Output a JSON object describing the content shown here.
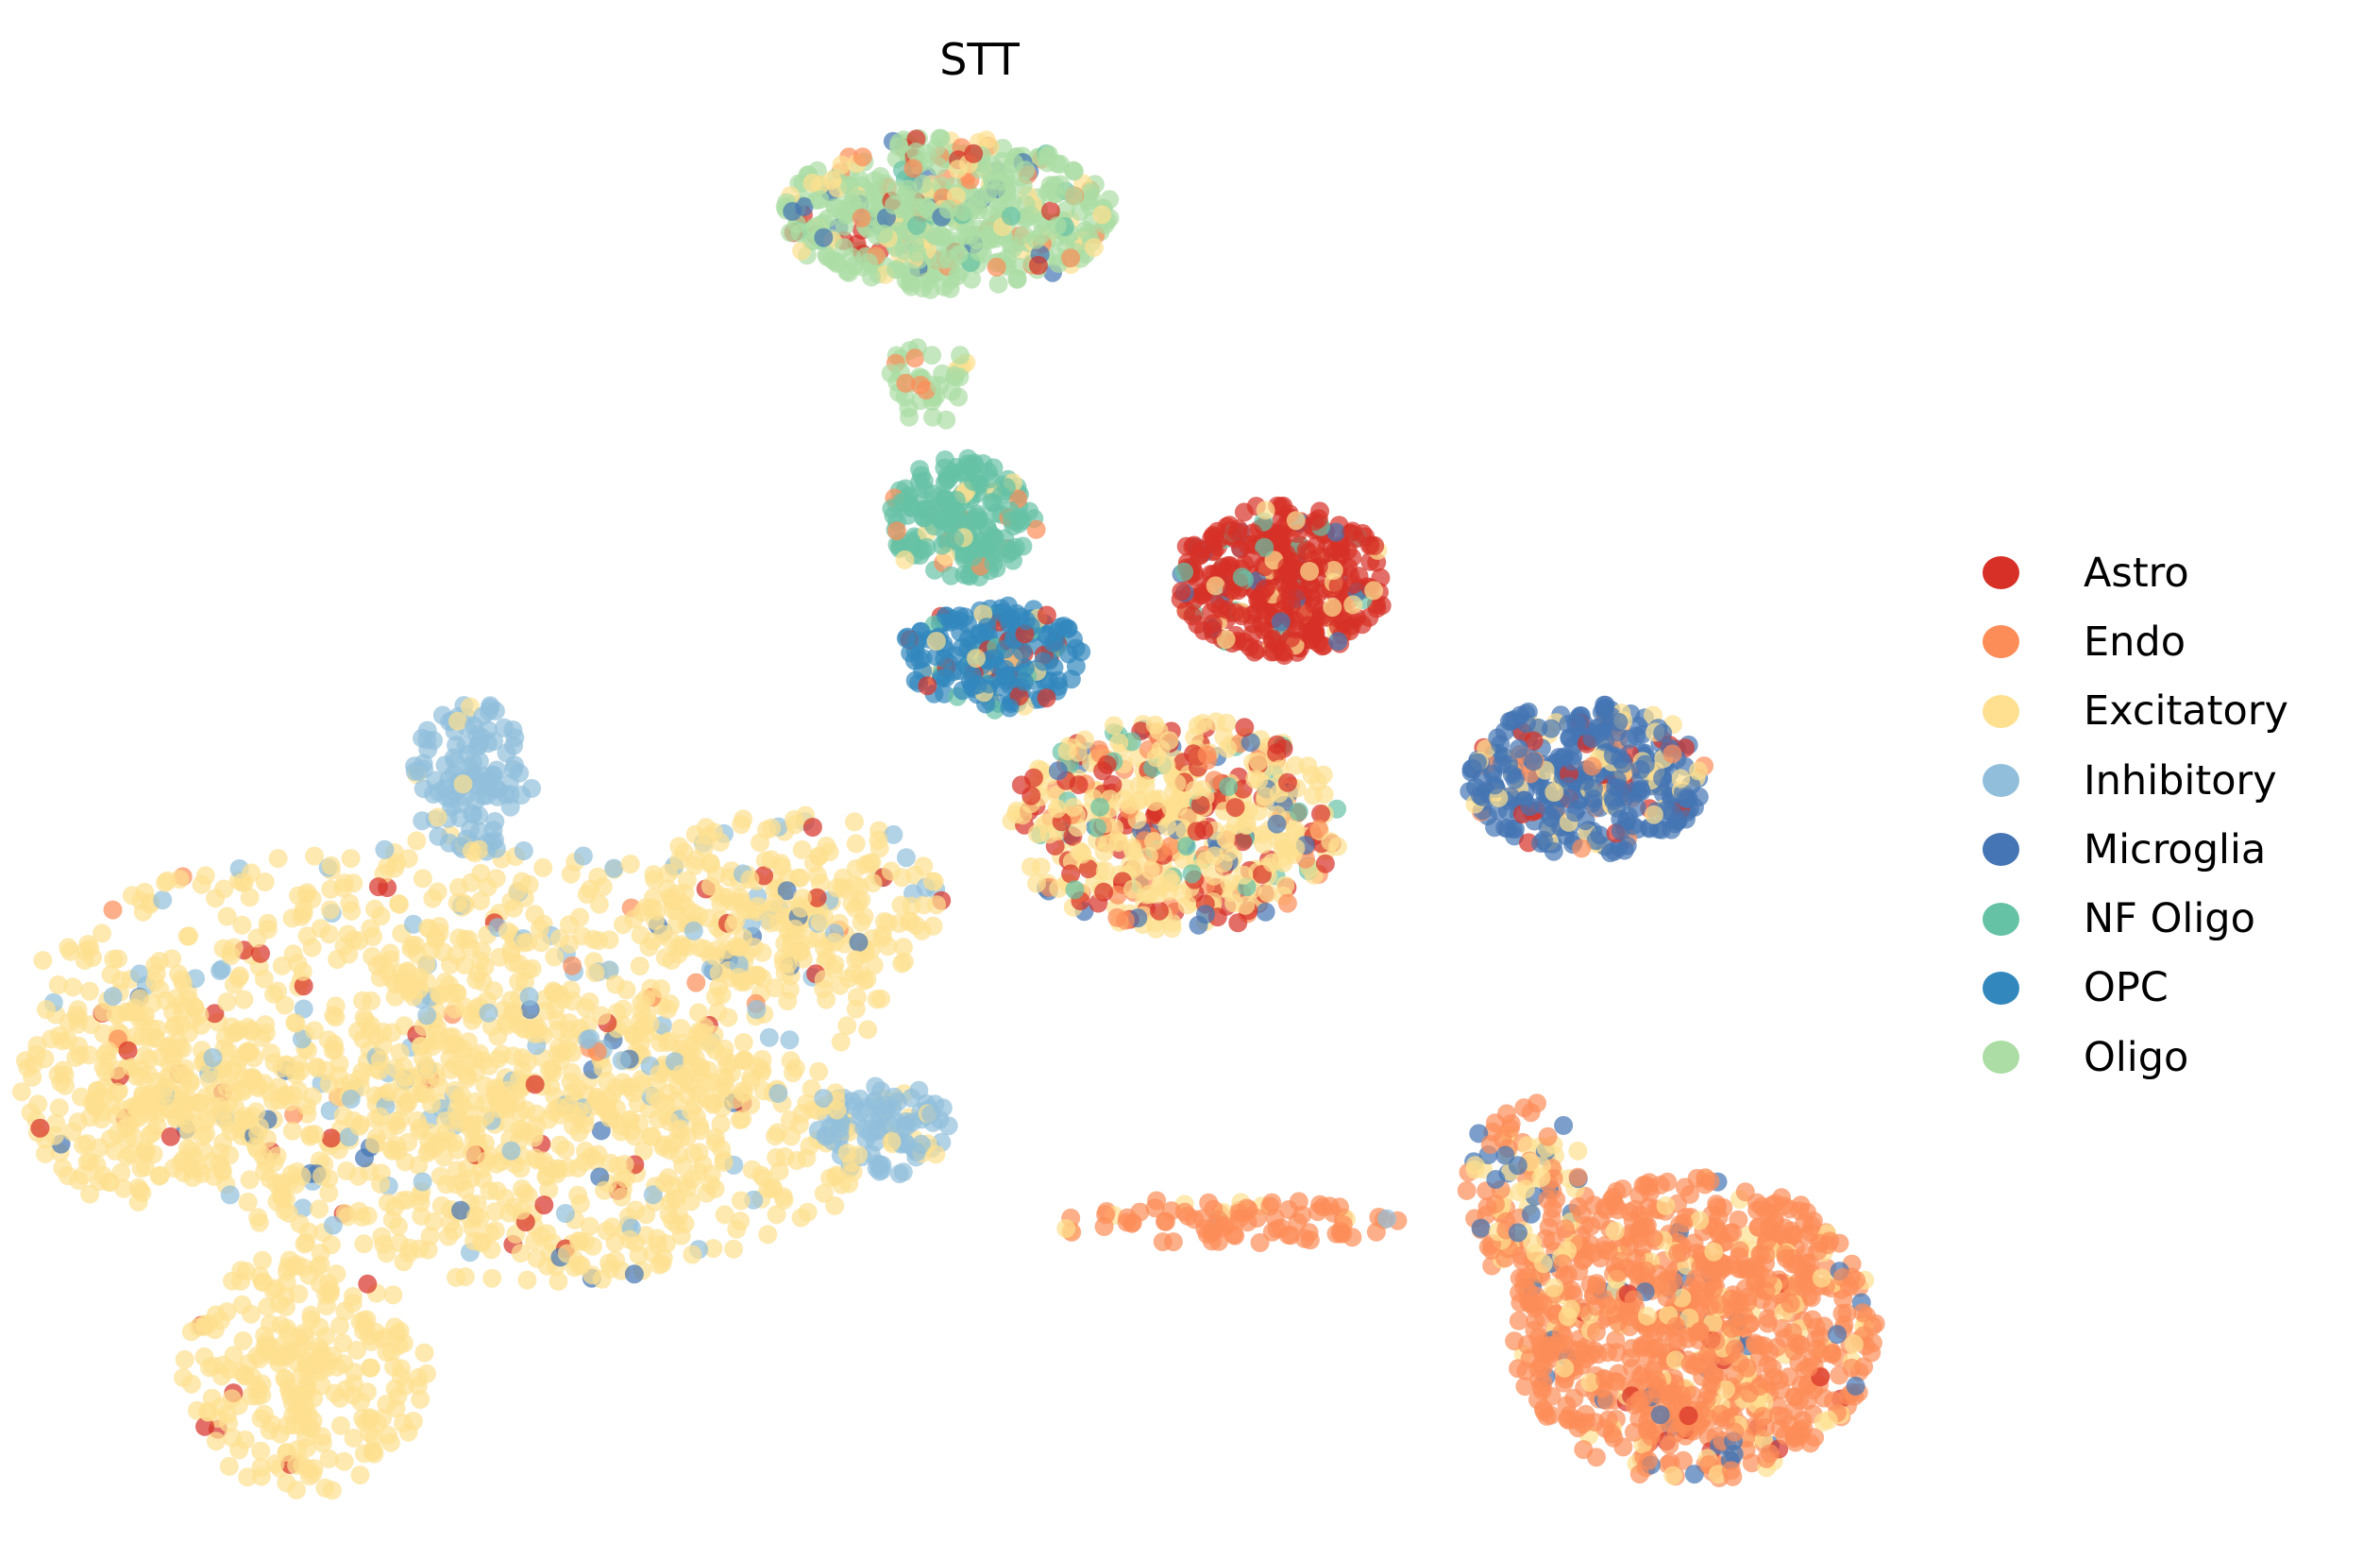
{
  "chart_data": {
    "type": "scatter",
    "title": "STT",
    "xlabel": "",
    "ylabel": "",
    "xlim": [
      0,
      156
    ],
    "ylim": [
      0,
      101
    ],
    "grid": false,
    "axes_visible": false,
    "legend_placement": "right",
    "categories": [
      {
        "name": "Astro",
        "color": "#d73027"
      },
      {
        "name": "Endo",
        "color": "#fc8d59"
      },
      {
        "name": "Excitatory",
        "color": "#fee090"
      },
      {
        "name": "Inhibitory",
        "color": "#91bfdb"
      },
      {
        "name": "Microglia",
        "color": "#4575b4"
      },
      {
        "name": "NF Oligo",
        "color": "#66c2a5"
      },
      {
        "name": "OPC",
        "color": "#3288bd"
      },
      {
        "name": "Oligo",
        "color": "#abdda4"
      }
    ],
    "clusters": [
      {
        "center": [
          30,
          36
        ],
        "spread": [
          28,
          10
        ],
        "n": 700,
        "mix": {
          "Excitatory": 0.86,
          "Inhibitory": 0.1,
          "Astro": 0.02,
          "Endo": 0.02
        }
      },
      {
        "center": [
          10,
          29
        ],
        "spread": [
          9,
          7
        ],
        "n": 260,
        "mix": {
          "Excitatory": 0.96,
          "Astro": 0.02,
          "Microglia": 0.02
        }
      },
      {
        "center": [
          35,
          26
        ],
        "spread": [
          22,
          9
        ],
        "n": 650,
        "mix": {
          "Excitatory": 0.9,
          "Inhibitory": 0.05,
          "Astro": 0.03,
          "Microglia": 0.02
        }
      },
      {
        "center": [
          20,
          11
        ],
        "spread": [
          8,
          8
        ],
        "n": 260,
        "mix": {
          "Excitatory": 0.97,
          "Astro": 0.03
        }
      },
      {
        "center": [
          52,
          42
        ],
        "spread": [
          10,
          6
        ],
        "n": 220,
        "mix": {
          "Excitatory": 0.85,
          "Inhibitory": 0.08,
          "Astro": 0.04,
          "Microglia": 0.03
        }
      },
      {
        "center": [
          31,
          50
        ],
        "spread": [
          4,
          5
        ],
        "n": 120,
        "mix": {
          "Inhibitory": 0.9,
          "Excitatory": 0.1
        }
      },
      {
        "center": [
          58,
          27
        ],
        "spread": [
          4.5,
          3
        ],
        "n": 110,
        "mix": {
          "Inhibitory": 0.85,
          "Excitatory": 0.15
        }
      },
      {
        "center": [
          62,
          87
        ],
        "spread": [
          11,
          5
        ],
        "n": 520,
        "mix": {
          "Oligo": 0.72,
          "Excitatory": 0.1,
          "Endo": 0.07,
          "Microglia": 0.05,
          "Astro": 0.03,
          "NF Oligo": 0.03
        }
      },
      {
        "center": [
          61,
          76
        ],
        "spread": [
          3,
          3
        ],
        "n": 40,
        "mix": {
          "Oligo": 0.8,
          "Excitatory": 0.1,
          "Endo": 0.1
        }
      },
      {
        "center": [
          63,
          67
        ],
        "spread": [
          5,
          4
        ],
        "n": 200,
        "mix": {
          "NF Oligo": 0.9,
          "Excitatory": 0.05,
          "Endo": 0.05
        }
      },
      {
        "center": [
          65,
          58
        ],
        "spread": [
          6,
          3.5
        ],
        "n": 220,
        "mix": {
          "OPC": 0.75,
          "Excitatory": 0.1,
          "Astro": 0.08,
          "NF Oligo": 0.07
        }
      },
      {
        "center": [
          84,
          63
        ],
        "spread": [
          7,
          5
        ],
        "n": 380,
        "mix": {
          "Astro": 0.85,
          "Excitatory": 0.06,
          "Microglia": 0.05,
          "NF Oligo": 0.04
        }
      },
      {
        "center": [
          77,
          47
        ],
        "spread": [
          11,
          7
        ],
        "n": 520,
        "mix": {
          "Excitatory": 0.55,
          "Astro": 0.2,
          "Endo": 0.12,
          "Microglia": 0.08,
          "NF Oligo": 0.05
        }
      },
      {
        "center": [
          104,
          50
        ],
        "spread": [
          8,
          5
        ],
        "n": 380,
        "mix": {
          "Microglia": 0.72,
          "Excitatory": 0.15,
          "Endo": 0.07,
          "Astro": 0.06
        }
      },
      {
        "center": [
          111,
          14
        ],
        "spread": [
          12,
          10
        ],
        "n": 900,
        "mix": {
          "Endo": 0.84,
          "Excitatory": 0.1,
          "Microglia": 0.04,
          "Astro": 0.02
        }
      },
      {
        "center": [
          100,
          23
        ],
        "spread": [
          4,
          6
        ],
        "n": 120,
        "mix": {
          "Endo": 0.5,
          "Excitatory": 0.35,
          "Microglia": 0.15
        }
      },
      {
        "center": [
          80,
          21
        ],
        "spread": [
          12,
          1.5
        ],
        "n": 90,
        "mix": {
          "Endo": 0.85,
          "Excitatory": 0.08,
          "Inhibitory": 0.07
        }
      }
    ]
  }
}
